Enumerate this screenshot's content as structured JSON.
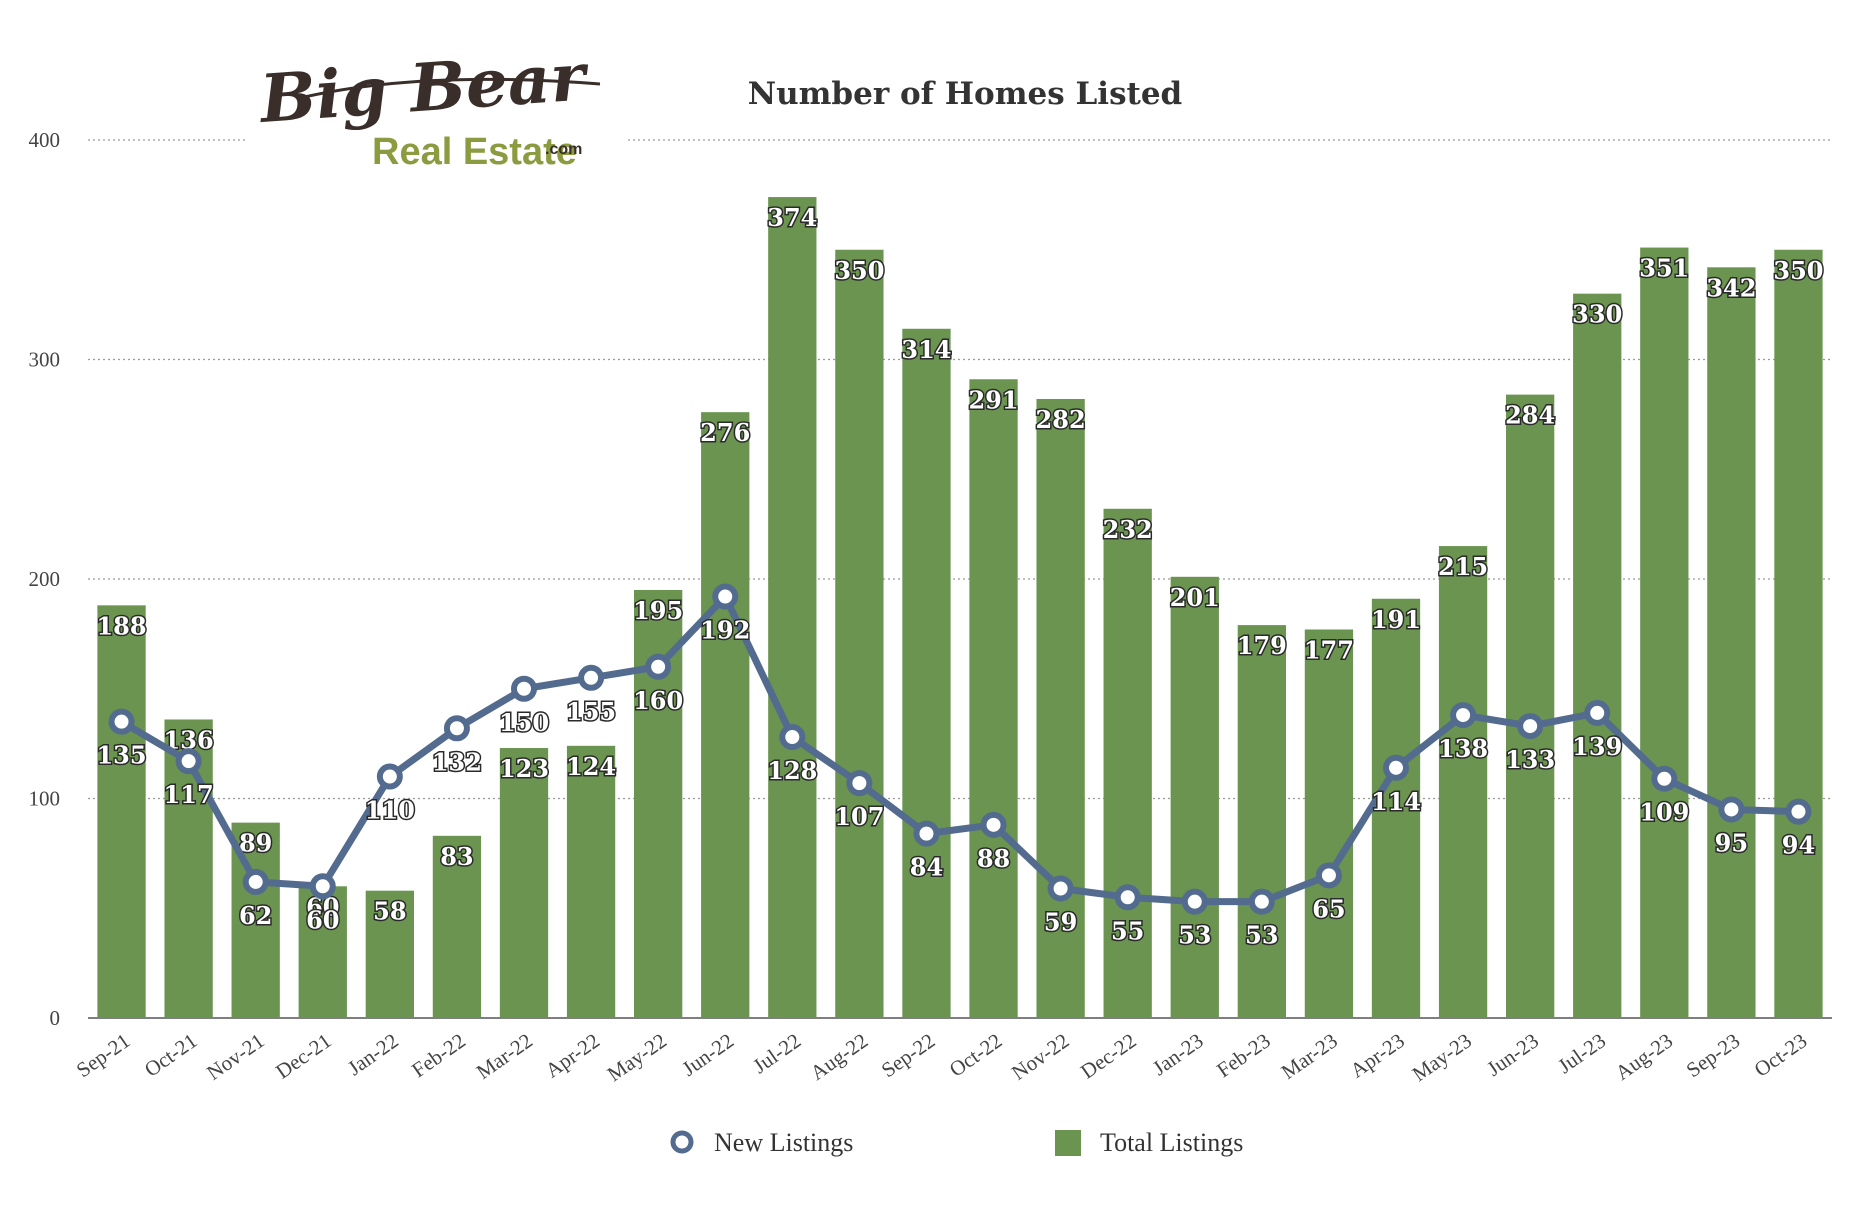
{
  "logo": {
    "line1": "Big Bear",
    "line2": "Real Estate",
    "suffix": ".com"
  },
  "chart_data": {
    "type": "bar",
    "title": "Number of Homes Listed",
    "xlabel": "",
    "ylabel": "",
    "ylim": [
      0,
      400
    ],
    "yticks": [
      0,
      100,
      200,
      300,
      400
    ],
    "grid": true,
    "legend_position": "bottom",
    "categories": [
      "Sep-21",
      "Oct-21",
      "Nov-21",
      "Dec-21",
      "Jan-22",
      "Feb-22",
      "Mar-22",
      "Apr-22",
      "May-22",
      "Jun-22",
      "Jul-22",
      "Aug-22",
      "Sep-22",
      "Oct-22",
      "Nov-22",
      "Dec-22",
      "Jan-23",
      "Feb-23",
      "Mar-23",
      "Apr-23",
      "May-23",
      "Jun-23",
      "Jul-23",
      "Aug-23",
      "Sep-23",
      "Oct-23"
    ],
    "series": [
      {
        "name": "Total Listings",
        "type": "bar",
        "color": "#6a9450",
        "values": [
          188,
          136,
          89,
          60,
          58,
          83,
          123,
          124,
          195,
          276,
          374,
          350,
          314,
          291,
          282,
          232,
          201,
          179,
          177,
          191,
          215,
          284,
          330,
          351,
          342,
          350
        ]
      },
      {
        "name": "New Listings",
        "type": "line",
        "color": "#536b8e",
        "values": [
          135,
          117,
          62,
          60,
          110,
          132,
          150,
          155,
          160,
          192,
          128,
          107,
          84,
          88,
          59,
          55,
          53,
          53,
          65,
          114,
          138,
          133,
          139,
          109,
          95,
          94
        ]
      }
    ]
  }
}
